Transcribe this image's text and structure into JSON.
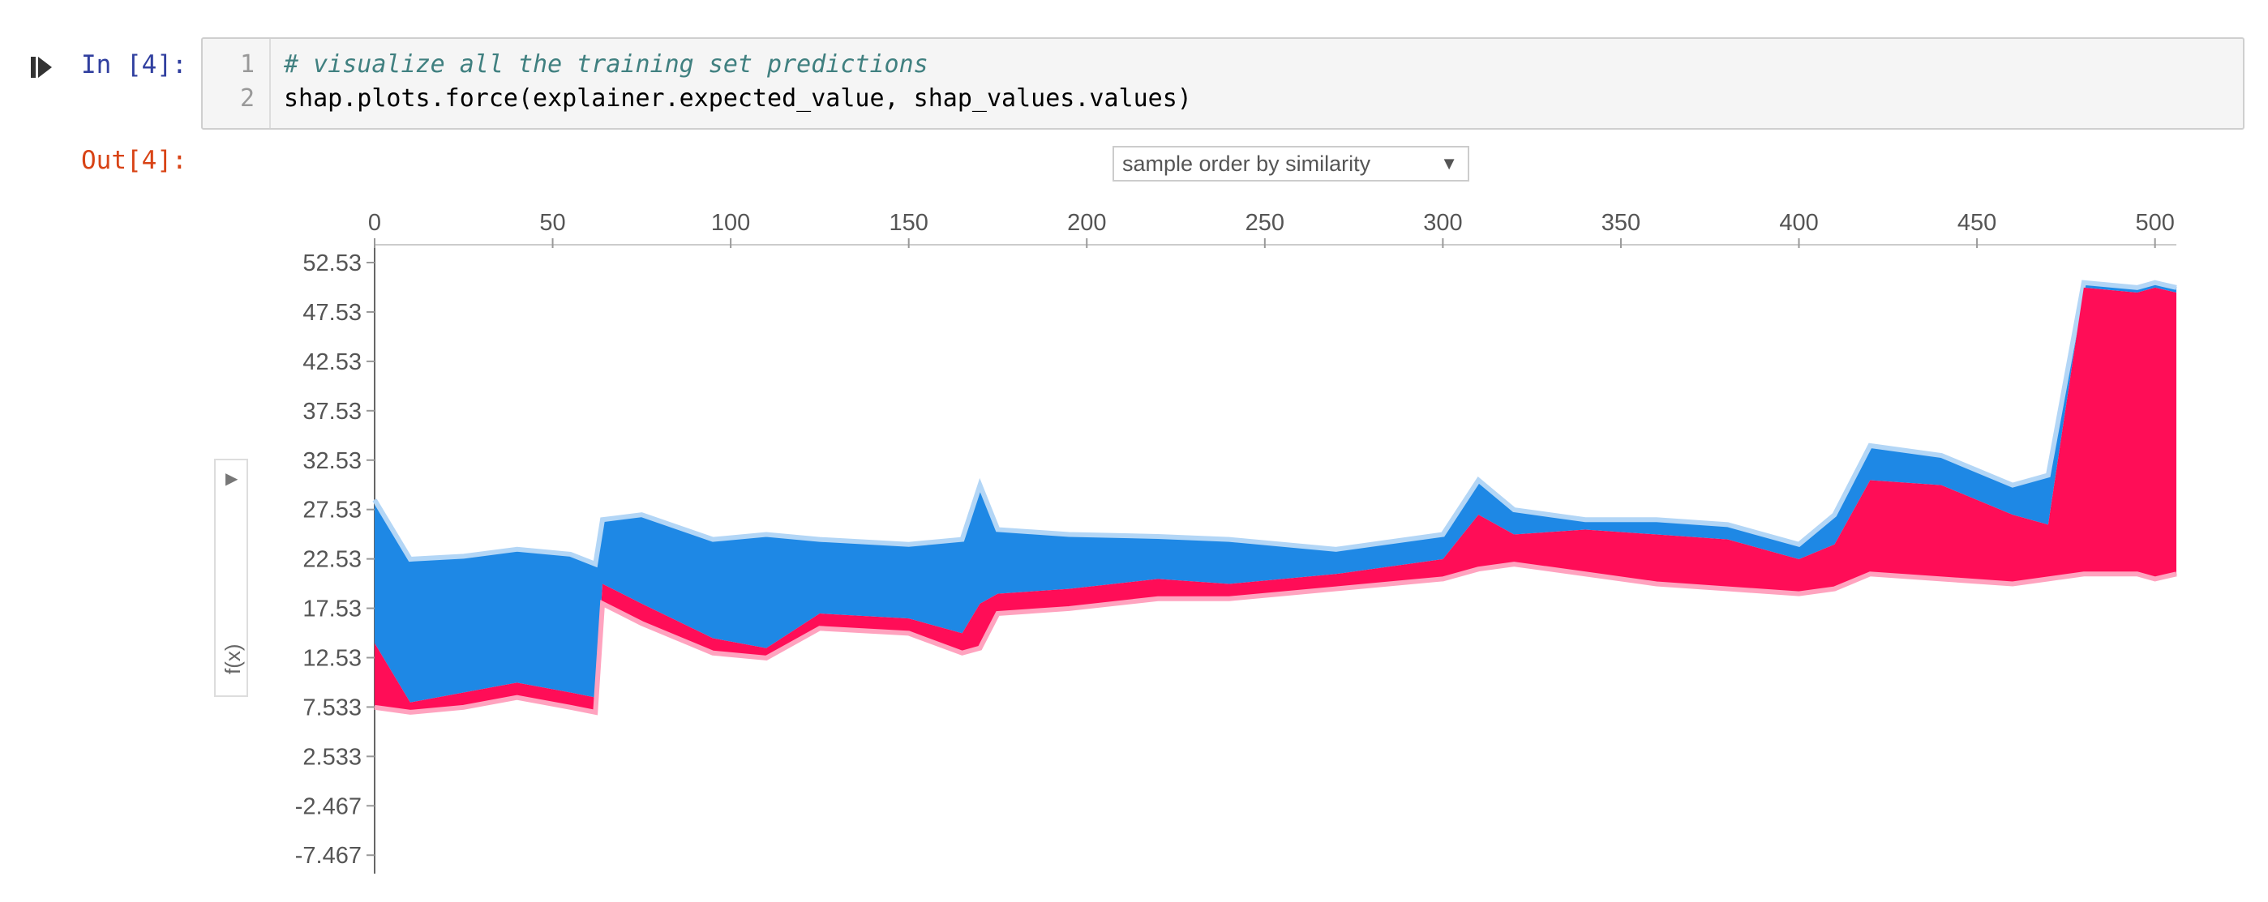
{
  "cell": {
    "in_prompt": "In [4]:",
    "out_prompt": "Out[4]:",
    "line_numbers": [
      "1",
      "2"
    ],
    "code_lines": [
      "# visualize all the training set predictions",
      "shap.plots.force(explainer.expected_value, shap_values.values)"
    ]
  },
  "plot_controls": {
    "order_select_value": "sample order by similarity",
    "y_axis_select_label": "f(x)"
  },
  "colors": {
    "positive": "#ff0d57",
    "positive_light": "#ffa3bf",
    "negative": "#1e88e5",
    "negative_light": "#b3d6f6"
  },
  "chart_data": {
    "type": "area",
    "description": "SHAP stacked force plot: explanations of all training samples",
    "x_ticks": [
      "0",
      "50",
      "100",
      "150",
      "200",
      "250",
      "300",
      "350",
      "400",
      "450",
      "500"
    ],
    "y_ticks": [
      "52.53",
      "47.53",
      "42.53",
      "37.53",
      "32.53",
      "27.53",
      "22.53",
      "17.53",
      "12.53",
      "7.533",
      "2.533",
      "-2.467",
      "-7.467"
    ],
    "xlim": [
      0,
      506
    ],
    "ylim": [
      -9.5,
      54.5
    ],
    "series": [
      {
        "name": "negative",
        "x": [
          0,
          10,
          25,
          40,
          55,
          62,
          64,
          75,
          95,
          110,
          125,
          150,
          165,
          170,
          175,
          195,
          220,
          240,
          270,
          300,
          310,
          320,
          340,
          360,
          380,
          400,
          410,
          420,
          440,
          460,
          470,
          480,
          495,
          500,
          506
        ],
        "top": [
          28.5,
          22.5,
          22.8,
          23.5,
          23.0,
          22.0,
          26.5,
          27.0,
          24.5,
          25.0,
          24.5,
          24.0,
          24.5,
          30.0,
          25.5,
          25.0,
          24.8,
          24.5,
          23.5,
          25.0,
          30.5,
          27.5,
          26.5,
          26.5,
          26.0,
          24.0,
          27.0,
          34.0,
          33.0,
          30.0,
          31.0,
          50.5,
          50.0,
          50.5,
          50.0
        ],
        "bottom": [
          14.0,
          8.0,
          9.0,
          10.0,
          9.0,
          8.5,
          20.0,
          18.0,
          14.5,
          13.5,
          17.0,
          16.5,
          15.0,
          18.0,
          19.0,
          19.5,
          20.5,
          20.0,
          21.0,
          22.5,
          27.0,
          25.0,
          25.5,
          25.0,
          24.5,
          22.5,
          24.0,
          30.5,
          30.0,
          27.0,
          26.0,
          50.0,
          49.5,
          50.0,
          49.5
        ]
      },
      {
        "name": "positive",
        "x": [
          0,
          10,
          25,
          40,
          55,
          62,
          64,
          75,
          95,
          110,
          125,
          150,
          165,
          170,
          175,
          195,
          220,
          240,
          270,
          300,
          310,
          320,
          340,
          360,
          380,
          400,
          410,
          420,
          440,
          460,
          470,
          480,
          495,
          500,
          506
        ],
        "top": [
          14.0,
          8.0,
          9.0,
          10.0,
          9.0,
          8.5,
          20.0,
          18.0,
          14.5,
          13.5,
          17.0,
          16.5,
          15.0,
          18.0,
          19.0,
          19.5,
          20.5,
          20.0,
          21.0,
          22.5,
          27.0,
          25.0,
          25.5,
          25.0,
          24.5,
          22.5,
          24.0,
          30.5,
          30.0,
          27.0,
          26.0,
          50.0,
          49.5,
          50.0,
          49.5
        ],
        "bottom": [
          7.5,
          7.0,
          7.5,
          8.5,
          7.5,
          7.0,
          18.0,
          16.0,
          13.0,
          12.5,
          15.5,
          15.0,
          13.0,
          13.5,
          17.0,
          17.5,
          18.5,
          18.5,
          19.5,
          20.5,
          21.5,
          22.0,
          21.0,
          20.0,
          19.5,
          19.0,
          19.5,
          21.0,
          20.5,
          20.0,
          20.5,
          21.0,
          21.0,
          20.5,
          21.0
        ]
      }
    ]
  }
}
